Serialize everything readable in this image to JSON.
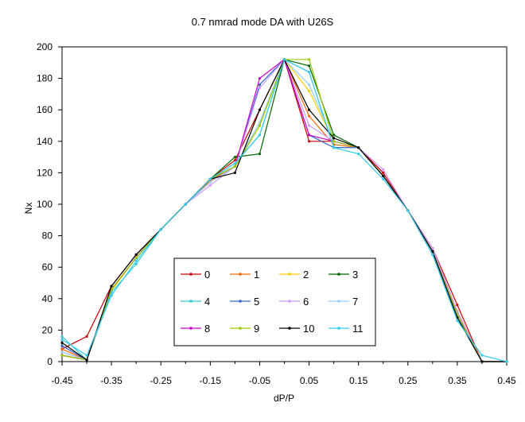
{
  "chart_data": {
    "type": "line",
    "title": "0.7 nmrad mode DA with U26S",
    "xlabel": "dP/P",
    "ylabel": "Nx",
    "xlim": [
      -0.45,
      0.45
    ],
    "ylim": [
      0,
      200
    ],
    "x_ticks": [
      "-0.45",
      "-0.35",
      "-0.25",
      "-0.15",
      "-0.05",
      "0.05",
      "0.15",
      "0.25",
      "0.35",
      "0.45"
    ],
    "x_tick_values": [
      -0.45,
      -0.35,
      -0.25,
      -0.15,
      -0.05,
      0.05,
      0.15,
      0.25,
      0.35,
      0.45
    ],
    "y_ticks": [
      "0",
      "20",
      "40",
      "60",
      "80",
      "100",
      "120",
      "140",
      "160",
      "180",
      "200"
    ],
    "y_tick_values": [
      0,
      20,
      40,
      60,
      80,
      100,
      120,
      140,
      160,
      180,
      200
    ],
    "grid": false,
    "legend_position": "bottom-center",
    "x": [
      -0.45,
      -0.4,
      -0.35,
      -0.3,
      -0.25,
      -0.2,
      -0.15,
      -0.1,
      -0.05,
      0.0,
      0.05,
      0.1,
      0.15,
      0.2,
      0.25,
      0.3,
      0.35,
      0.4,
      0.45
    ],
    "series": [
      {
        "name": "0",
        "color": "#cc0000",
        "values": [
          8,
          16,
          48,
          68,
          84,
          100,
          116,
          128,
          160,
          192,
          140,
          140,
          136,
          120,
          96,
          72,
          36,
          0,
          0
        ]
      },
      {
        "name": "1",
        "color": "#ff6600",
        "values": [
          8,
          1,
          46,
          66,
          84,
          100,
          115,
          124,
          150,
          192,
          156,
          138,
          136,
          118,
          96,
          70,
          30,
          0,
          0
        ]
      },
      {
        "name": "2",
        "color": "#ffcc00",
        "values": [
          6,
          1,
          45,
          66,
          84,
          100,
          114,
          124,
          150,
          192,
          172,
          140,
          136,
          118,
          96,
          70,
          32,
          0,
          0
        ]
      },
      {
        "name": "3",
        "color": "#006600",
        "values": [
          4,
          1,
          46,
          66,
          84,
          100,
          116,
          130,
          132,
          192,
          188,
          144,
          136,
          118,
          96,
          70,
          30,
          0,
          0
        ]
      },
      {
        "name": "4",
        "color": "#33cccc",
        "values": [
          16,
          1,
          44,
          62,
          84,
          100,
          116,
          126,
          144,
          192,
          184,
          136,
          136,
          118,
          96,
          68,
          28,
          0,
          0
        ]
      },
      {
        "name": "5",
        "color": "#3366cc",
        "values": [
          10,
          1,
          46,
          66,
          84,
          100,
          116,
          124,
          176,
          192,
          144,
          136,
          136,
          118,
          96,
          70,
          30,
          0,
          0
        ]
      },
      {
        "name": "6",
        "color": "#cc99ff",
        "values": [
          6,
          1,
          46,
          66,
          84,
          100,
          112,
          124,
          174,
          192,
          150,
          140,
          136,
          122,
          96,
          72,
          32,
          0,
          0
        ]
      },
      {
        "name": "7",
        "color": "#99ccff",
        "values": [
          6,
          1,
          46,
          66,
          84,
          100,
          114,
          124,
          152,
          192,
          176,
          140,
          136,
          118,
          96,
          70,
          30,
          0,
          0
        ]
      },
      {
        "name": "8",
        "color": "#cc00cc",
        "values": [
          4,
          1,
          46,
          66,
          84,
          100,
          116,
          124,
          180,
          192,
          144,
          140,
          136,
          118,
          96,
          70,
          30,
          0,
          0
        ]
      },
      {
        "name": "9",
        "color": "#99cc00",
        "values": [
          4,
          1,
          46,
          66,
          84,
          100,
          116,
          124,
          150,
          192,
          192,
          140,
          136,
          118,
          96,
          70,
          30,
          0,
          0
        ]
      },
      {
        "name": "10",
        "color": "#000000",
        "values": [
          12,
          1,
          48,
          68,
          84,
          100,
          116,
          120,
          160,
          192,
          160,
          142,
          136,
          118,
          96,
          70,
          28,
          0,
          0
        ]
      },
      {
        "name": "11",
        "color": "#33ccee",
        "values": [
          14,
          4,
          42,
          64,
          84,
          100,
          116,
          126,
          144,
          192,
          184,
          136,
          132,
          116,
          96,
          68,
          26,
          4,
          0
        ]
      }
    ]
  }
}
